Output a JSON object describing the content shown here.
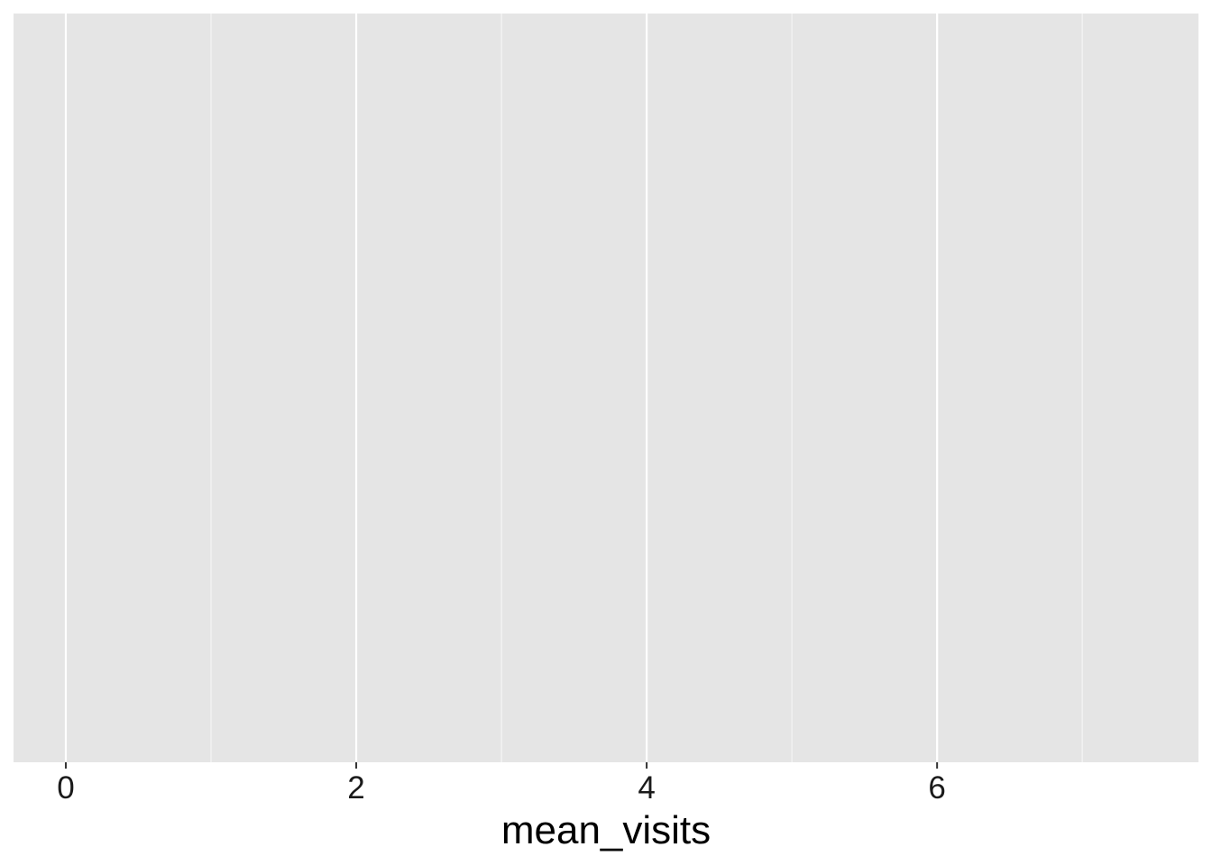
{
  "chart_data": {
    "type": "bar",
    "title": "",
    "xlabel": "mean_visits",
    "ylabel": "",
    "xlim": [
      -0.36,
      7.8
    ],
    "x_ticks": [
      0,
      2,
      4,
      6
    ],
    "x_minor_ticks": [
      1,
      3,
      5,
      7
    ],
    "tick_labels": [
      "0",
      "2",
      "4",
      "6"
    ],
    "series": [],
    "grid": true,
    "legend": "none",
    "colors": {
      "panel_background": "#e5e5e5",
      "grid_major": "#ffffff",
      "grid_minor": "#f5f5f5",
      "text": "#1a1a1a",
      "tick": "#333333"
    }
  }
}
